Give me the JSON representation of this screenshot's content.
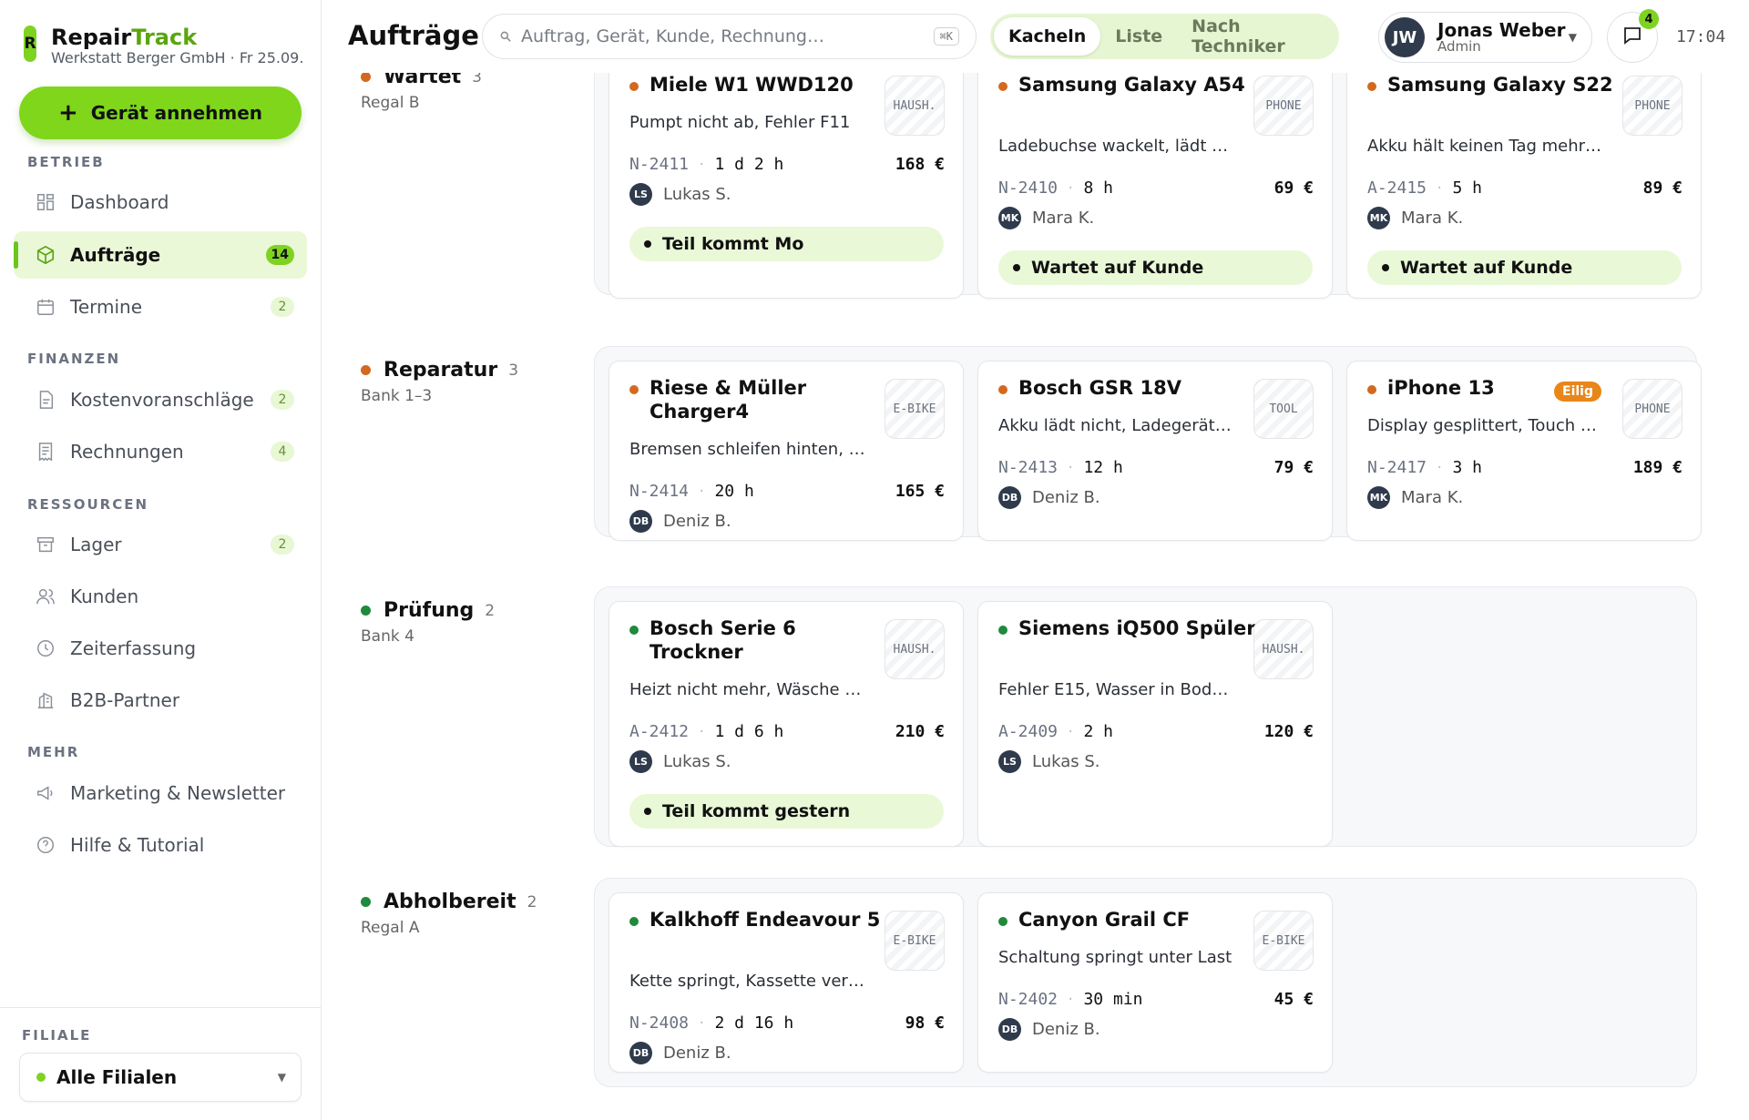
{
  "brand": {
    "name_part1": "Repair",
    "name_part2": "Track",
    "subtitle": "Werkstatt Berger GmbH · Fr 25.09.",
    "logo_letter": "R"
  },
  "sidebar": {
    "cta_label": "Gerät annehmen",
    "sections": {
      "betrieb": "BETRIEB",
      "finanzen": "FINANZEN",
      "ressourcen": "RESSOURCEN",
      "mehr": "MEHR"
    },
    "items": [
      {
        "label": "Dashboard",
        "icon": "dashboard-icon"
      },
      {
        "label": "Aufträge",
        "icon": "cube-icon",
        "badge": "14",
        "active": true
      },
      {
        "label": "Termine",
        "icon": "calendar-icon",
        "badge": "2"
      },
      {
        "label": "Kostenvoranschläge",
        "icon": "document-icon",
        "badge": "2"
      },
      {
        "label": "Rechnungen",
        "icon": "receipt-icon",
        "badge": "4"
      },
      {
        "label": "Lager",
        "icon": "box-icon",
        "badge": "2"
      },
      {
        "label": "Kunden",
        "icon": "users-icon"
      },
      {
        "label": "Zeiterfassung",
        "icon": "clock-icon"
      },
      {
        "label": "B2B-Partner",
        "icon": "building-icon"
      },
      {
        "label": "Marketing & Newsletter",
        "icon": "megaphone-icon"
      },
      {
        "label": "Hilfe & Tutorial",
        "icon": "help-icon"
      }
    ],
    "filiale_label": "FILIALE",
    "filiale_value": "Alle Filialen"
  },
  "header": {
    "title": "Aufträge",
    "search_placeholder": "Auftrag, Gerät, Kunde, Rechnung…",
    "search_shortcut": "⌘K",
    "view_options": [
      "Kacheln",
      "Liste",
      "Nach Techniker"
    ],
    "active_view": "Kacheln",
    "user": {
      "initials": "JW",
      "name": "Jonas Weber",
      "role": "Admin"
    },
    "messages_badge": "4",
    "time": "17:04"
  },
  "colors": {
    "accent": "#7ed321",
    "orange": "#d2691e",
    "green": "#1f8a3b",
    "urgent": "#e8861a"
  },
  "groups": [
    {
      "title": "Wartet",
      "count": "3",
      "location": "Regal B",
      "dot": "#d2691e",
      "cards": [
        {
          "title": "Miele W1 WWD120",
          "desc": "Pumpt nicht ab, Fehler F11",
          "tag": "HAUSH.",
          "id": "N-2411",
          "duration": "1 d 2 h",
          "price": "168 €",
          "tech_initials": "LS",
          "tech": "Lukas S.",
          "status": "Teil kommt Mo"
        },
        {
          "title": "Samsung Galaxy A54",
          "desc": "Ladebuchse wackelt, lädt …",
          "tag": "PHONE",
          "id": "N-2410",
          "duration": "8 h",
          "price": "69 €",
          "tech_initials": "MK",
          "tech": "Mara K.",
          "status": "Wartet auf Kunde"
        },
        {
          "title": "Samsung Galaxy S22",
          "desc": "Akku hält keinen Tag mehr…",
          "tag": "PHONE",
          "id": "A-2415",
          "duration": "5 h",
          "price": "89 €",
          "tech_initials": "MK",
          "tech": "Mara K.",
          "status": "Wartet auf Kunde"
        }
      ]
    },
    {
      "title": "Reparatur",
      "count": "3",
      "location": "Bank 1–3",
      "dot": "#d2691e",
      "cards": [
        {
          "title": "Riese & Müller Charger4",
          "desc": "Bremsen schleifen hinten, …",
          "tag": "E-BIKE",
          "id": "N-2414",
          "duration": "20 h",
          "price": "165 €",
          "tech_initials": "DB",
          "tech": "Deniz B."
        },
        {
          "title": "Bosch GSR 18V",
          "desc": "Akku lädt nicht, Ladegerät…",
          "tag": "TOOL",
          "id": "N-2413",
          "duration": "12 h",
          "price": "79 €",
          "tech_initials": "DB",
          "tech": "Deniz B."
        },
        {
          "title": "iPhone 13",
          "desc": "Display gesplittert, Touch …",
          "tag": "PHONE",
          "id": "N-2417",
          "duration": "3 h",
          "price": "189 €",
          "tech_initials": "MK",
          "tech": "Mara K.",
          "urgent": "Eilig"
        }
      ]
    },
    {
      "title": "Prüfung",
      "count": "2",
      "location": "Bank 4",
      "dot": "#1f8a3b",
      "cards": [
        {
          "title": "Bosch Serie 6 Trockner",
          "desc": "Heizt nicht mehr, Wäsche …",
          "tag": "HAUSH.",
          "id": "A-2412",
          "duration": "1 d 6 h",
          "price": "210 €",
          "tech_initials": "LS",
          "tech": "Lukas S.",
          "status": "Teil kommt gestern"
        },
        {
          "title": "Siemens iQ500 Spüler",
          "desc": "Fehler E15, Wasser in Bod…",
          "tag": "HAUSH.",
          "id": "A-2409",
          "duration": "2 h",
          "price": "120 €",
          "tech_initials": "LS",
          "tech": "Lukas S."
        }
      ]
    },
    {
      "title": "Abholbereit",
      "count": "2",
      "location": "Regal A",
      "dot": "#1f8a3b",
      "cards": [
        {
          "title": "Kalkhoff Endeavour 5",
          "desc": "Kette springt, Kassette ver…",
          "tag": "E-BIKE",
          "id": "N-2408",
          "duration": "2 d 16 h",
          "price": "98 €",
          "tech_initials": "DB",
          "tech": "Deniz B."
        },
        {
          "title": "Canyon Grail CF",
          "desc": "Schaltung springt unter Last",
          "tag": "E-BIKE",
          "id": "N-2402",
          "duration": "30 min",
          "price": "45 €",
          "tech_initials": "DB",
          "tech": "Deniz B."
        }
      ]
    }
  ]
}
